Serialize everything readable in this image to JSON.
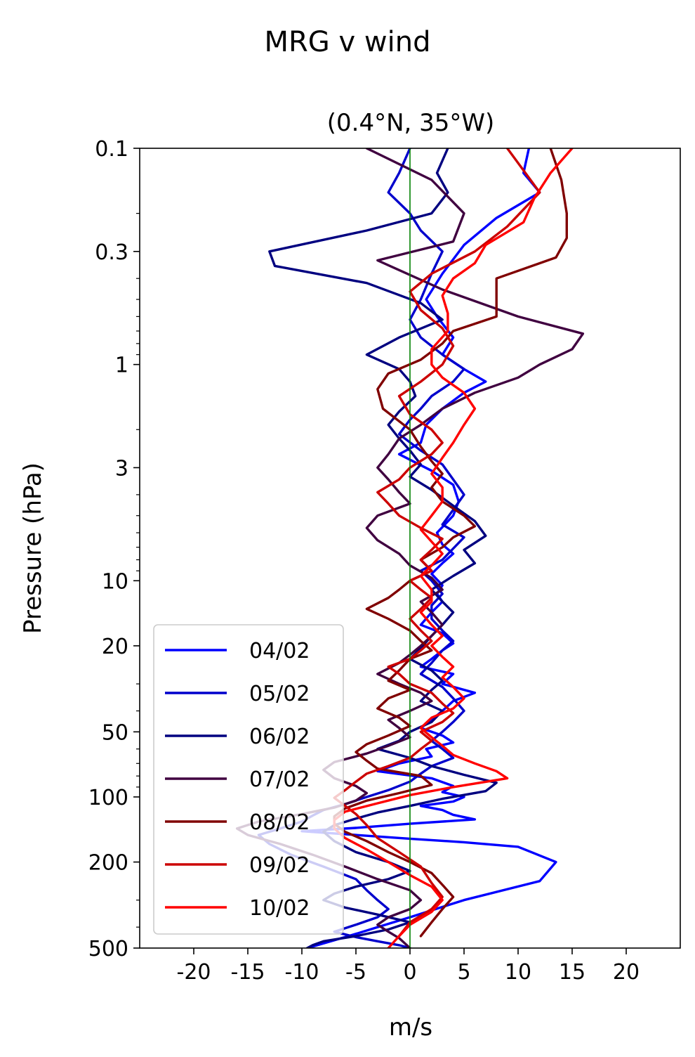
{
  "chart_data": {
    "type": "line",
    "suptitle": "MRG v wind",
    "title": "(0.4°N, 35°W)",
    "xlabel": "m/s",
    "ylabel": "Pressure (hPa)",
    "xlim": [
      -25,
      25
    ],
    "ylim": [
      500,
      0.1
    ],
    "yscale": "log",
    "y_inverted": true,
    "xticks": [
      -20,
      -15,
      -10,
      -5,
      0,
      5,
      10,
      15,
      20
    ],
    "xtick_labels": [
      "-20",
      "-15",
      "-10",
      "-5",
      "0",
      "5",
      "10",
      "15",
      "20"
    ],
    "yticks": [
      0.1,
      0.3,
      1,
      3,
      10,
      20,
      50,
      100,
      200,
      500
    ],
    "ytick_labels": [
      "0.1",
      "0.3",
      "1",
      "3",
      "10",
      "20",
      "50",
      "100",
      "200",
      "500"
    ],
    "zero_line": {
      "x": 0,
      "color": "#008000"
    },
    "grid": false,
    "legend_position": "lower-left",
    "series": [
      {
        "name": "04/02",
        "color": "#0000ff",
        "x": [
          11,
          10.5,
          12,
          8,
          5,
          3,
          1.5,
          2.5,
          4,
          3,
          5,
          7,
          5,
          3,
          1.5,
          1,
          -1,
          2,
          4,
          4.5,
          4,
          2.5,
          3,
          4,
          3,
          2,
          3,
          2.5,
          3,
          2,
          1,
          3,
          4,
          3,
          2,
          1,
          4,
          3,
          6,
          4,
          3,
          2,
          1,
          3,
          4,
          1.5,
          2,
          -1,
          -3,
          2,
          4,
          3,
          5,
          4,
          1,
          3,
          4,
          6,
          0,
          -5,
          -10,
          -5,
          0,
          5,
          10,
          13.5,
          12,
          5,
          0,
          -3,
          -5,
          -7,
          -9.5
        ],
        "y": [
          0.1,
          0.13,
          0.16,
          0.21,
          0.28,
          0.38,
          0.5,
          0.6,
          0.75,
          0.9,
          1.05,
          1.2,
          1.35,
          1.6,
          1.9,
          2.3,
          2.6,
          3.1,
          3.6,
          4.3,
          5,
          6,
          6.8,
          7.5,
          8.3,
          9.3,
          10.5,
          11.5,
          12.5,
          14,
          16,
          17.5,
          19.5,
          21,
          23,
          25,
          27,
          30,
          33,
          36,
          40,
          44,
          48,
          52,
          56,
          60,
          65,
          70,
          76,
          82,
          89,
          95,
          100,
          105,
          110,
          115,
          121,
          127,
          133,
          139,
          144,
          150,
          156,
          162,
          170,
          200,
          245,
          300,
          360,
          400,
          430,
          460,
          500
        ]
      },
      {
        "name": "05/02",
        "color": "#0000cc",
        "x": [
          0,
          -1,
          -2,
          0,
          1,
          3,
          2,
          1,
          0,
          1,
          3,
          5,
          4,
          2,
          1,
          0,
          -1,
          1,
          3,
          4,
          5,
          4,
          3,
          5,
          4,
          3,
          1,
          2,
          3,
          2,
          2,
          3,
          4,
          3,
          2,
          1,
          3,
          4,
          5,
          4,
          3,
          2,
          3,
          4,
          2,
          1,
          0,
          -2,
          -4,
          -6,
          -8,
          -9,
          -10,
          -12,
          -14,
          -13,
          -11,
          -8,
          -5,
          -4,
          -3,
          -2,
          -3,
          -5,
          -7,
          -5,
          -3,
          -1,
          0
        ],
        "y": [
          0.1,
          0.13,
          0.16,
          0.2,
          0.24,
          0.3,
          0.38,
          0.5,
          0.62,
          0.75,
          0.9,
          1.05,
          1.2,
          1.4,
          1.6,
          1.8,
          2.1,
          2.5,
          2.9,
          3.4,
          4,
          4.7,
          5.5,
          6.3,
          7.1,
          8,
          9,
          10,
          11.5,
          13,
          15,
          17,
          19,
          21,
          24,
          27,
          31,
          35,
          40,
          45,
          50,
          55,
          60,
          66,
          72,
          78,
          85,
          93,
          100,
          108,
          115,
          122,
          130,
          140,
          150,
          165,
          185,
          210,
          240,
          270,
          300,
          330,
          360,
          390,
          420,
          445,
          465,
          485,
          500
        ]
      },
      {
        "name": "06/02",
        "color": "#000080",
        "x": [
          3.5,
          2.5,
          3.5,
          2,
          -4,
          -13,
          -12.5,
          -4,
          1,
          3,
          -1,
          -4,
          -1,
          0,
          0.5,
          -1,
          -2,
          -1,
          0,
          1,
          0,
          2,
          4,
          6,
          7,
          5,
          6,
          4,
          2,
          3,
          4,
          3,
          2,
          1,
          0,
          2,
          3,
          2,
          1,
          3,
          2,
          0,
          -1,
          -3,
          0,
          2,
          5,
          8,
          7,
          3,
          0,
          -3,
          -5,
          -7,
          -8,
          -7,
          -5,
          -2,
          0,
          -2,
          -5,
          -7,
          -8,
          -6,
          -3,
          0,
          -2,
          -5,
          -8,
          -9,
          -9.5
        ],
        "y": [
          0.1,
          0.13,
          0.16,
          0.2,
          0.24,
          0.3,
          0.35,
          0.42,
          0.52,
          0.62,
          0.75,
          0.9,
          1.05,
          1.2,
          1.4,
          1.65,
          1.9,
          2.2,
          2.5,
          2.9,
          3.3,
          3.8,
          4.5,
          5.3,
          6.2,
          7.2,
          8.3,
          9.5,
          11,
          12.5,
          14,
          16,
          18,
          20.5,
          23,
          26,
          29,
          32,
          36,
          40,
          45,
          50,
          55,
          60,
          66,
          72,
          79,
          86,
          94,
          102,
          110,
          118,
          126,
          135,
          145,
          160,
          180,
          200,
          220,
          240,
          260,
          280,
          300,
          325,
          350,
          380,
          410,
          440,
          465,
          485,
          500
        ]
      },
      {
        "name": "07/02",
        "color": "#400040",
        "x": [
          -4,
          2,
          5,
          4,
          -3,
          3,
          10,
          16,
          15,
          12,
          10,
          6,
          3,
          1,
          -1,
          -2,
          -3,
          -2,
          -1,
          0,
          -3,
          -4,
          -3,
          -1,
          0,
          2,
          3,
          1,
          2,
          3,
          2,
          1,
          0,
          -1,
          -3,
          -1,
          1,
          2,
          0,
          -2,
          -1,
          0,
          -2,
          -4,
          -7,
          -8,
          -7,
          -5,
          -4,
          -5,
          -7,
          -10,
          -14,
          -16,
          -15,
          -12,
          -9,
          -6,
          -3,
          0,
          1,
          0,
          -2,
          -3,
          -2,
          -1,
          0
        ],
        "y": [
          0.1,
          0.14,
          0.2,
          0.27,
          0.33,
          0.45,
          0.6,
          0.72,
          0.85,
          1,
          1.15,
          1.35,
          1.6,
          1.9,
          2.2,
          2.6,
          3,
          3.4,
          3.9,
          4.4,
          5,
          5.7,
          6.5,
          7.5,
          8.5,
          9.7,
          11,
          12.5,
          14,
          16,
          18,
          20,
          22,
          24,
          27,
          30,
          33,
          36,
          40,
          44,
          48,
          53,
          58,
          63,
          69,
          75,
          82,
          89,
          96,
          104,
          112,
          120,
          130,
          140,
          150,
          165,
          185,
          210,
          240,
          270,
          300,
          330,
          360,
          390,
          420,
          450,
          500
        ]
      },
      {
        "name": "08/02",
        "color": "#800000",
        "x": [
          13,
          14,
          14.5,
          14.5,
          13.5,
          8,
          8,
          8,
          4,
          3,
          1,
          -2,
          -3,
          -2.5,
          0,
          1,
          2,
          3,
          2,
          3,
          5,
          6,
          4,
          3,
          1,
          2,
          0,
          -1,
          -2,
          -4,
          -2,
          0,
          1,
          2,
          0,
          -1,
          -2,
          0,
          -2,
          -3,
          -1,
          0,
          -2,
          -4,
          -5,
          -4,
          -3,
          1,
          2,
          -1,
          -4,
          -6,
          -7,
          -7,
          -6,
          -4,
          -2,
          0,
          2,
          3,
          4,
          3,
          2,
          1
        ],
        "y": [
          0.1,
          0.14,
          0.2,
          0.26,
          0.32,
          0.4,
          0.5,
          0.6,
          0.7,
          0.8,
          0.95,
          1.1,
          1.3,
          1.6,
          2,
          2.4,
          2.8,
          3.2,
          3.7,
          4.3,
          5,
          5.6,
          6.3,
          7,
          8,
          9,
          10,
          11,
          12,
          13.5,
          15,
          17,
          19,
          21,
          23,
          26,
          29,
          32,
          35,
          39,
          43,
          47,
          52,
          57,
          62,
          68,
          74,
          80,
          88,
          96,
          104,
          113,
          123,
          133,
          145,
          160,
          180,
          200,
          225,
          255,
          290,
          330,
          380,
          440
        ]
      },
      {
        "name": "09/02",
        "color": "#cc0000",
        "x": [
          9,
          12,
          9,
          6,
          2,
          0,
          1,
          3,
          4,
          3,
          1,
          -1,
          0,
          2,
          3,
          2,
          0,
          -1,
          -3,
          -2,
          -1,
          1,
          3,
          2,
          1,
          2,
          0,
          1,
          2,
          1,
          0,
          1,
          2,
          1,
          0,
          -2,
          -1,
          0,
          2,
          3,
          4,
          3,
          1,
          2,
          1,
          0,
          -2,
          -4,
          -5,
          -6,
          -7,
          -6,
          -5,
          -4,
          -3,
          -1,
          1,
          2,
          3,
          2,
          0,
          -1
        ],
        "y": [
          0.1,
          0.16,
          0.23,
          0.3,
          0.38,
          0.46,
          0.56,
          0.68,
          0.82,
          1,
          1.2,
          1.4,
          1.7,
          2,
          2.3,
          2.6,
          3,
          3.4,
          3.9,
          4.4,
          5,
          5.7,
          6.4,
          7.2,
          8,
          9,
          10,
          11,
          12,
          13.5,
          15,
          17,
          19,
          21,
          23,
          25,
          27,
          30,
          33,
          37,
          41,
          45,
          50,
          55,
          60,
          66,
          72,
          78,
          85,
          93,
          101,
          110,
          120,
          135,
          155,
          180,
          210,
          250,
          290,
          330,
          380,
          440
        ]
      },
      {
        "name": "10/02",
        "color": "#ff0000",
        "x": [
          15,
          13,
          11.5,
          10.5,
          7,
          6,
          4,
          3,
          3.5,
          3.5,
          2,
          2,
          3,
          5,
          6,
          5,
          4,
          3,
          2,
          3,
          3,
          2,
          1,
          2,
          3,
          2,
          1,
          2,
          2,
          1,
          2,
          3,
          2,
          3,
          4,
          3,
          4,
          5,
          4,
          2,
          1,
          2,
          3,
          4,
          6,
          8,
          9,
          4,
          0,
          -3,
          -6,
          -7,
          -7,
          -6,
          -4,
          -2,
          0,
          2,
          3,
          2,
          0,
          -1,
          -2
        ],
        "y": [
          0.1,
          0.13,
          0.17,
          0.22,
          0.28,
          0.34,
          0.4,
          0.48,
          0.58,
          0.7,
          0.85,
          1,
          1.15,
          1.35,
          1.6,
          1.9,
          2.3,
          2.7,
          3.2,
          3.7,
          4.3,
          5,
          5.8,
          6.6,
          7.5,
          8.5,
          9.5,
          11,
          12.5,
          14,
          16,
          18,
          20,
          22.5,
          25,
          28,
          31,
          35,
          39,
          43,
          48,
          53,
          58,
          64,
          70,
          76,
          82,
          90,
          98,
          107,
          117,
          128,
          140,
          155,
          175,
          200,
          230,
          260,
          300,
          340,
          390,
          440,
          500
        ]
      }
    ]
  }
}
